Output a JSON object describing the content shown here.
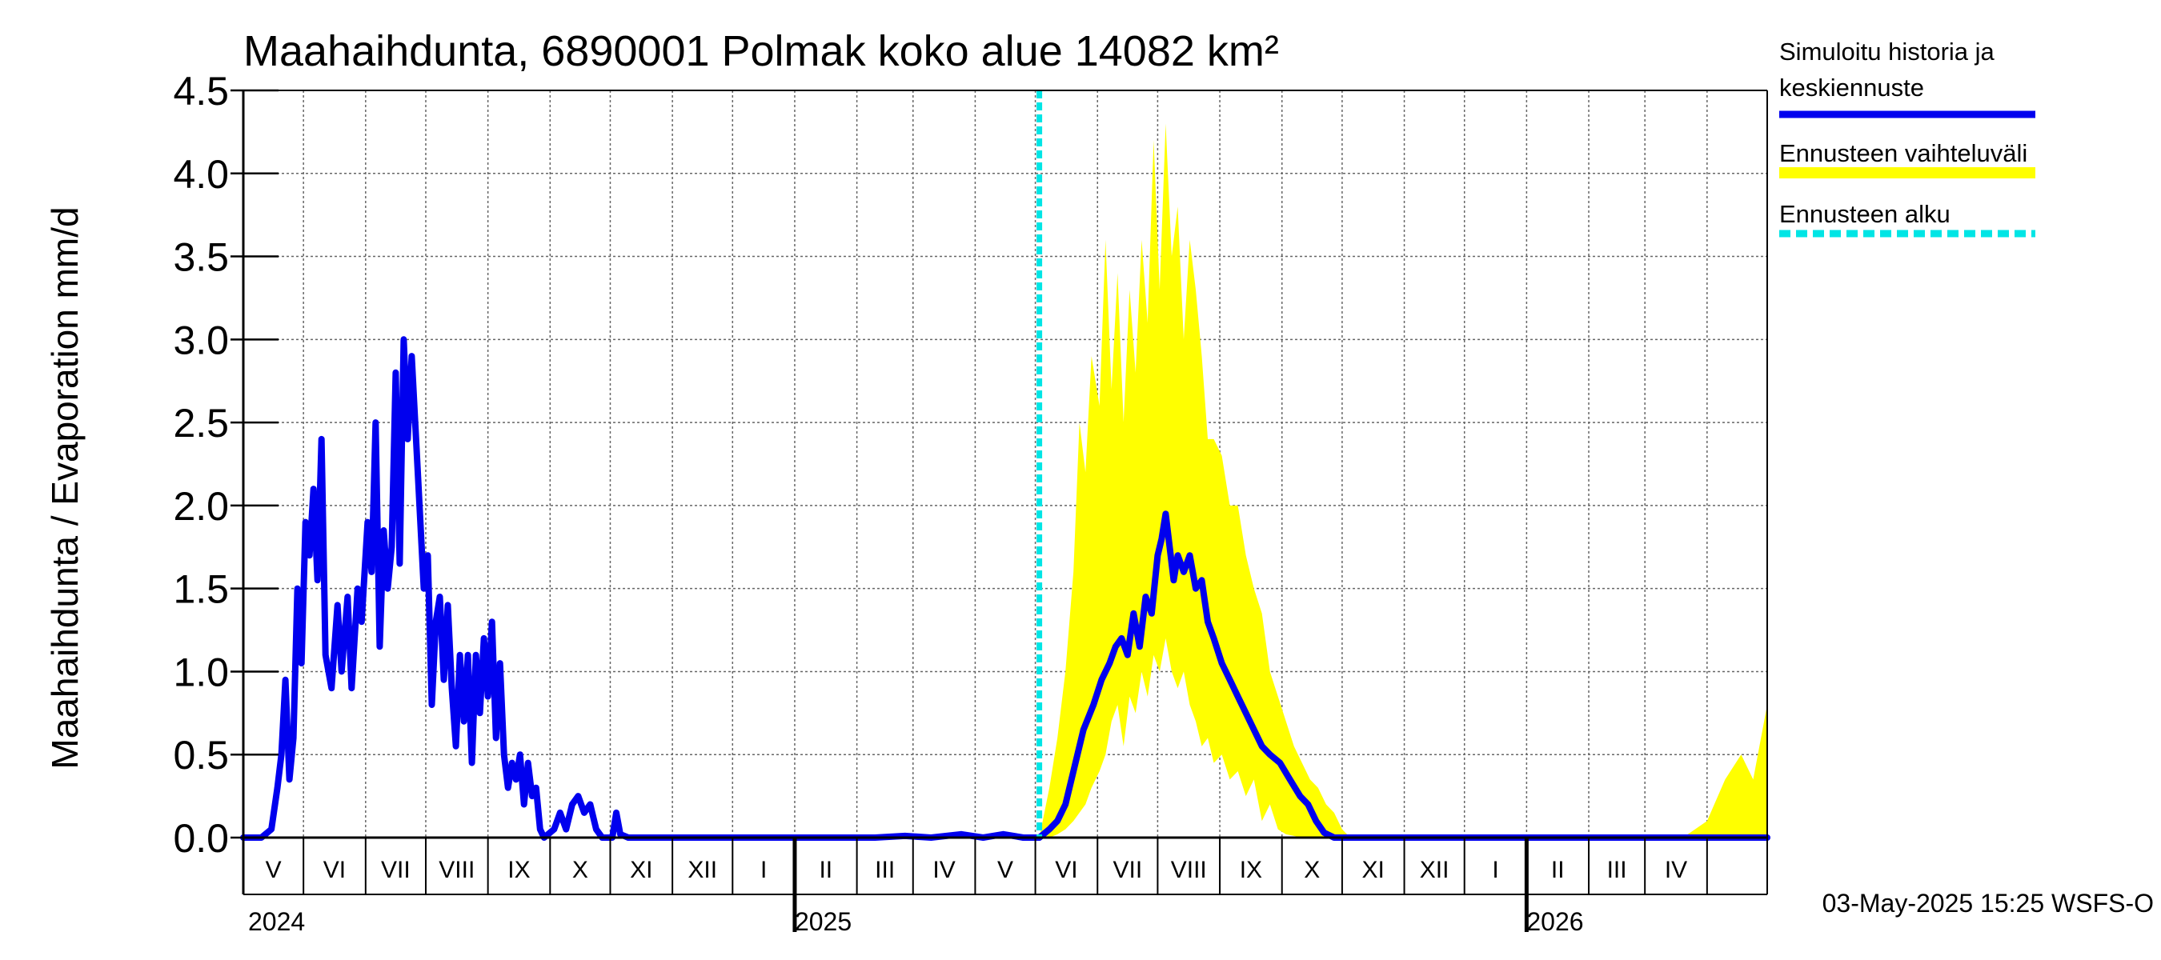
{
  "title": "Maahaihdunta, 6890001 Polmak koko alue 14082 km²",
  "ylabel": "Maahaihdunta / Evaporation   mm/d",
  "footer": "03-May-2025 15:25 WSFS-O",
  "legend": [
    {
      "label_lines": [
        "Simuloitu historia ja",
        "keskiennuste"
      ],
      "color": "#0000ee",
      "style": "solid"
    },
    {
      "label_lines": [
        "Ennusteen vaihteluväli"
      ],
      "color": "#ffff00",
      "style": "band"
    },
    {
      "label_lines": [
        "Ennusteen alku"
      ],
      "color": "#00e5e5",
      "style": "dashed"
    }
  ],
  "chart_data": {
    "type": "line",
    "ylim": [
      0,
      4.5
    ],
    "yticks": [
      "0.0",
      "0.5",
      "1.0",
      "1.5",
      "2.0",
      "2.5",
      "3.0",
      "3.5",
      "4.0",
      "4.5"
    ],
    "x_start": "2024-04-01",
    "x_end": "2026-05-01",
    "forecast_start": "2025-05-03",
    "grid": true,
    "month_labels": [
      "V",
      "VI",
      "VII",
      "VIII",
      "IX",
      "X",
      "XI",
      "XII",
      "I",
      "II",
      "III",
      "IV",
      "V",
      "VI",
      "VII",
      "VIII",
      "IX",
      "X",
      "XI",
      "XII",
      "I",
      "II",
      "III",
      "IV"
    ],
    "year_labels": [
      {
        "label": "2024",
        "date": "2024-01-01"
      },
      {
        "label": "2025",
        "date": "2025-01-01"
      },
      {
        "label": "2026",
        "date": "2026-01-01"
      }
    ],
    "series": [
      {
        "name": "Simuloitu historia ja keskiennuste",
        "color": "#0000ee",
        "points": [
          [
            "2024-04-01",
            0
          ],
          [
            "2024-04-10",
            0
          ],
          [
            "2024-04-15",
            0.05
          ],
          [
            "2024-04-18",
            0.3
          ],
          [
            "2024-04-20",
            0.5
          ],
          [
            "2024-04-22",
            0.95
          ],
          [
            "2024-04-24",
            0.35
          ],
          [
            "2024-04-26",
            0.6
          ],
          [
            "2024-04-28",
            1.5
          ],
          [
            "2024-04-30",
            1.05
          ],
          [
            "2024-05-02",
            1.9
          ],
          [
            "2024-05-04",
            1.7
          ],
          [
            "2024-05-06",
            2.1
          ],
          [
            "2024-05-08",
            1.55
          ],
          [
            "2024-05-10",
            2.4
          ],
          [
            "2024-05-12",
            1.1
          ],
          [
            "2024-05-15",
            0.9
          ],
          [
            "2024-05-18",
            1.4
          ],
          [
            "2024-05-20",
            1.0
          ],
          [
            "2024-05-23",
            1.45
          ],
          [
            "2024-05-25",
            0.9
          ],
          [
            "2024-05-28",
            1.5
          ],
          [
            "2024-05-30",
            1.3
          ],
          [
            "2024-06-02",
            1.9
          ],
          [
            "2024-06-04",
            1.6
          ],
          [
            "2024-06-06",
            2.5
          ],
          [
            "2024-06-08",
            1.15
          ],
          [
            "2024-06-10",
            1.85
          ],
          [
            "2024-06-12",
            1.5
          ],
          [
            "2024-06-14",
            1.75
          ],
          [
            "2024-06-16",
            2.8
          ],
          [
            "2024-06-18",
            1.65
          ],
          [
            "2024-06-20",
            3.0
          ],
          [
            "2024-06-22",
            2.4
          ],
          [
            "2024-06-24",
            2.9
          ],
          [
            "2024-06-27",
            2.2
          ],
          [
            "2024-06-30",
            1.5
          ],
          [
            "2024-07-02",
            1.7
          ],
          [
            "2024-07-04",
            0.8
          ],
          [
            "2024-07-06",
            1.3
          ],
          [
            "2024-07-08",
            1.45
          ],
          [
            "2024-07-10",
            0.95
          ],
          [
            "2024-07-12",
            1.4
          ],
          [
            "2024-07-14",
            0.9
          ],
          [
            "2024-07-16",
            0.55
          ],
          [
            "2024-07-18",
            1.1
          ],
          [
            "2024-07-20",
            0.7
          ],
          [
            "2024-07-22",
            1.1
          ],
          [
            "2024-07-24",
            0.45
          ],
          [
            "2024-07-26",
            1.1
          ],
          [
            "2024-07-28",
            0.75
          ],
          [
            "2024-07-30",
            1.2
          ],
          [
            "2024-08-01",
            0.85
          ],
          [
            "2024-08-03",
            1.3
          ],
          [
            "2024-08-05",
            0.6
          ],
          [
            "2024-08-07",
            1.05
          ],
          [
            "2024-08-09",
            0.5
          ],
          [
            "2024-08-11",
            0.3
          ],
          [
            "2024-08-13",
            0.45
          ],
          [
            "2024-08-15",
            0.35
          ],
          [
            "2024-08-17",
            0.5
          ],
          [
            "2024-08-19",
            0.2
          ],
          [
            "2024-08-21",
            0.45
          ],
          [
            "2024-08-23",
            0.25
          ],
          [
            "2024-08-25",
            0.3
          ],
          [
            "2024-08-27",
            0.05
          ],
          [
            "2024-08-29",
            0.0
          ],
          [
            "2024-09-03",
            0.05
          ],
          [
            "2024-09-06",
            0.15
          ],
          [
            "2024-09-09",
            0.05
          ],
          [
            "2024-09-12",
            0.2
          ],
          [
            "2024-09-15",
            0.25
          ],
          [
            "2024-09-18",
            0.15
          ],
          [
            "2024-09-21",
            0.2
          ],
          [
            "2024-09-24",
            0.05
          ],
          [
            "2024-09-27",
            0.0
          ],
          [
            "2024-10-02",
            0.0
          ],
          [
            "2024-10-04",
            0.15
          ],
          [
            "2024-10-06",
            0.02
          ],
          [
            "2024-10-10",
            0.0
          ],
          [
            "2025-02-10",
            0.0
          ],
          [
            "2025-02-25",
            0.01
          ],
          [
            "2025-03-10",
            0.0
          ],
          [
            "2025-03-25",
            0.02
          ],
          [
            "2025-04-05",
            0.0
          ],
          [
            "2025-04-15",
            0.02
          ],
          [
            "2025-04-25",
            0.0
          ],
          [
            "2025-05-03",
            0.0
          ],
          [
            "2025-05-08",
            0.05
          ],
          [
            "2025-05-12",
            0.1
          ],
          [
            "2025-05-16",
            0.2
          ],
          [
            "2025-05-20",
            0.4
          ],
          [
            "2025-05-25",
            0.65
          ],
          [
            "2025-05-30",
            0.8
          ],
          [
            "2025-06-03",
            0.95
          ],
          [
            "2025-06-07",
            1.05
          ],
          [
            "2025-06-10",
            1.15
          ],
          [
            "2025-06-13",
            1.2
          ],
          [
            "2025-06-16",
            1.1
          ],
          [
            "2025-06-19",
            1.35
          ],
          [
            "2025-06-22",
            1.15
          ],
          [
            "2025-06-25",
            1.45
          ],
          [
            "2025-06-28",
            1.35
          ],
          [
            "2025-07-01",
            1.7
          ],
          [
            "2025-07-03",
            1.8
          ],
          [
            "2025-07-05",
            1.95
          ],
          [
            "2025-07-07",
            1.75
          ],
          [
            "2025-07-09",
            1.55
          ],
          [
            "2025-07-11",
            1.7
          ],
          [
            "2025-07-14",
            1.6
          ],
          [
            "2025-07-17",
            1.7
          ],
          [
            "2025-07-20",
            1.5
          ],
          [
            "2025-07-23",
            1.55
          ],
          [
            "2025-07-26",
            1.3
          ],
          [
            "2025-07-29",
            1.2
          ],
          [
            "2025-08-02",
            1.05
          ],
          [
            "2025-08-06",
            0.95
          ],
          [
            "2025-08-10",
            0.85
          ],
          [
            "2025-08-14",
            0.75
          ],
          [
            "2025-08-18",
            0.65
          ],
          [
            "2025-08-22",
            0.55
          ],
          [
            "2025-08-26",
            0.5
          ],
          [
            "2025-08-31",
            0.45
          ],
          [
            "2025-09-05",
            0.35
          ],
          [
            "2025-09-10",
            0.25
          ],
          [
            "2025-09-14",
            0.2
          ],
          [
            "2025-09-18",
            0.1
          ],
          [
            "2025-09-22",
            0.03
          ],
          [
            "2025-09-27",
            0.0
          ],
          [
            "2026-05-01",
            0.0
          ]
        ]
      },
      {
        "name": "Ennusteen vaihteluväli",
        "color": "#ffff00",
        "type": "band",
        "points": [
          [
            "2025-05-03",
            0,
            0
          ],
          [
            "2025-05-08",
            0,
            0.3
          ],
          [
            "2025-05-12",
            0.02,
            0.6
          ],
          [
            "2025-05-16",
            0.05,
            1.0
          ],
          [
            "2025-05-20",
            0.1,
            1.6
          ],
          [
            "2025-05-23",
            0.15,
            2.5
          ],
          [
            "2025-05-26",
            0.2,
            2.2
          ],
          [
            "2025-05-29",
            0.3,
            2.9
          ],
          [
            "2025-06-02",
            0.4,
            2.6
          ],
          [
            "2025-06-05",
            0.5,
            3.6
          ],
          [
            "2025-06-08",
            0.7,
            2.7
          ],
          [
            "2025-06-11",
            0.8,
            3.4
          ],
          [
            "2025-06-14",
            0.55,
            2.5
          ],
          [
            "2025-06-17",
            0.85,
            3.3
          ],
          [
            "2025-06-20",
            0.75,
            2.8
          ],
          [
            "2025-06-23",
            1.0,
            3.6
          ],
          [
            "2025-06-26",
            0.85,
            3.1
          ],
          [
            "2025-06-29",
            1.1,
            4.2
          ],
          [
            "2025-07-02",
            1.0,
            3.3
          ],
          [
            "2025-07-05",
            1.2,
            4.3
          ],
          [
            "2025-07-08",
            1.0,
            3.5
          ],
          [
            "2025-07-11",
            0.9,
            3.8
          ],
          [
            "2025-07-14",
            1.0,
            3.0
          ],
          [
            "2025-07-17",
            0.8,
            3.6
          ],
          [
            "2025-07-20",
            0.7,
            3.3
          ],
          [
            "2025-07-23",
            0.55,
            2.9
          ],
          [
            "2025-07-26",
            0.6,
            2.4
          ],
          [
            "2025-07-29",
            0.45,
            2.4
          ],
          [
            "2025-08-02",
            0.5,
            2.3
          ],
          [
            "2025-08-06",
            0.35,
            2.0
          ],
          [
            "2025-08-10",
            0.4,
            2.0
          ],
          [
            "2025-08-14",
            0.25,
            1.7
          ],
          [
            "2025-08-18",
            0.35,
            1.5
          ],
          [
            "2025-08-22",
            0.1,
            1.35
          ],
          [
            "2025-08-26",
            0.2,
            1.0
          ],
          [
            "2025-08-30",
            0.05,
            0.85
          ],
          [
            "2025-09-03",
            0.02,
            0.7
          ],
          [
            "2025-09-07",
            0.01,
            0.55
          ],
          [
            "2025-09-11",
            0.0,
            0.45
          ],
          [
            "2025-09-15",
            0.0,
            0.35
          ],
          [
            "2025-09-19",
            0.0,
            0.3
          ],
          [
            "2025-09-23",
            0.0,
            0.2
          ],
          [
            "2025-09-27",
            0.0,
            0.15
          ],
          [
            "2025-10-01",
            0.0,
            0.05
          ],
          [
            "2025-10-05",
            0.0,
            0.0
          ],
          [
            "2026-03-20",
            0.0,
            0.0
          ],
          [
            "2026-04-01",
            0.0,
            0.1
          ],
          [
            "2026-04-10",
            0.0,
            0.35
          ],
          [
            "2026-04-18",
            0.0,
            0.5
          ],
          [
            "2026-04-24",
            0.0,
            0.35
          ],
          [
            "2026-05-01",
            0.0,
            0.8
          ]
        ]
      }
    ]
  }
}
